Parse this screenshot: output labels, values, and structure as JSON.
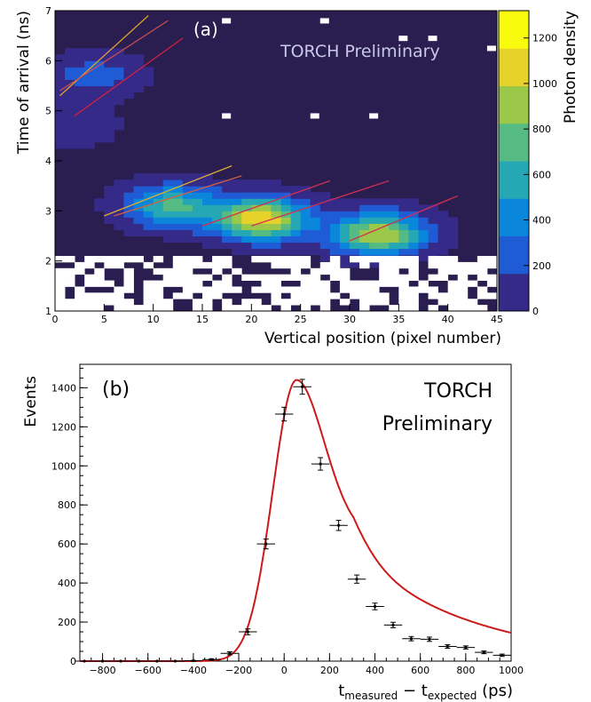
{
  "chart_data": [
    {
      "type": "heatmap",
      "panel_label": "(a)",
      "watermark": "TORCH Preliminary",
      "xlabel": "Vertical position (pixel number)",
      "ylabel": "Time of arrival (ns)",
      "colorbar_label": "Photon density",
      "xlim": [
        0,
        45
      ],
      "ylim": [
        1,
        7
      ],
      "xticks": [
        "0",
        "5",
        "10",
        "15",
        "20",
        "25",
        "30",
        "35",
        "40",
        "45"
      ],
      "yticks": [
        "1",
        "2",
        "3",
        "4",
        "5",
        "6",
        "7"
      ],
      "colorbar_ticks": [
        "0",
        "200",
        "400",
        "600",
        "800",
        "1000",
        "1200"
      ],
      "zlim": [
        0,
        1320
      ],
      "colormap": [
        "#352a87",
        "#1f5bd4",
        "#0a86da",
        "#26a8b4",
        "#55bb83",
        "#9cc84a",
        "#e6d22a",
        "#f9fb0e"
      ],
      "background_color": "#2a1d4f",
      "blobs": [
        {
          "x": 12,
          "y": 3.1,
          "peak": 700
        },
        {
          "x": 21,
          "y": 2.85,
          "peak": 1150
        },
        {
          "x": 33,
          "y": 2.55,
          "peak": 1000
        },
        {
          "x": 4,
          "y": 5.7,
          "peak": 250
        },
        {
          "x": 2,
          "y": 4.7,
          "peak": 120
        }
      ],
      "pattern_lines": [
        {
          "x": [
            0.5,
            9.5
          ],
          "y": [
            5.3,
            6.9
          ],
          "color": "#e0a030"
        },
        {
          "x": [
            0.5,
            11.5
          ],
          "y": [
            5.4,
            6.8
          ],
          "color": "#c85050"
        },
        {
          "x": [
            2,
            13
          ],
          "y": [
            4.9,
            6.45
          ],
          "color": "#d22040"
        },
        {
          "x": [
            5,
            18
          ],
          "y": [
            2.9,
            3.9
          ],
          "color": "#e0b030"
        },
        {
          "x": [
            6,
            19
          ],
          "y": [
            2.9,
            3.7
          ],
          "color": "#d06040"
        },
        {
          "x": [
            15,
            28
          ],
          "y": [
            2.7,
            3.6
          ],
          "color": "#d23050"
        },
        {
          "x": [
            20,
            34
          ],
          "y": [
            2.7,
            3.6
          ],
          "color": "#d23050"
        },
        {
          "x": [
            30,
            41
          ],
          "y": [
            2.4,
            3.3
          ],
          "color": "#d23050"
        }
      ]
    },
    {
      "type": "scatter",
      "panel_label": "(b)",
      "watermark": [
        "TORCH",
        "Preliminary"
      ],
      "ylabel": "Events",
      "xlabel": {
        "t1": "t",
        "sub1": "measured",
        "op": " − ",
        "t2": "t",
        "sub2": "expected",
        "unit": " (ps)"
      },
      "xlim": [
        -900,
        1000
      ],
      "ylim": [
        0,
        1520
      ],
      "xticks": [
        "−800",
        "−600",
        "−400",
        "−200",
        "0",
        "200",
        "400",
        "600",
        "800",
        "1000"
      ],
      "xtick_values": [
        -800,
        -600,
        -400,
        -200,
        0,
        200,
        400,
        600,
        800,
        1000
      ],
      "yticks": [
        "0",
        "200",
        "400",
        "600",
        "800",
        "1000",
        "1200",
        "1400"
      ],
      "ytick_values": [
        0,
        200,
        400,
        600,
        800,
        1000,
        1200,
        1400
      ],
      "bin_width": 80,
      "points": [
        {
          "x": -880,
          "y": 0
        },
        {
          "x": -800,
          "y": 0
        },
        {
          "x": -720,
          "y": 0
        },
        {
          "x": -640,
          "y": 0
        },
        {
          "x": -560,
          "y": 0
        },
        {
          "x": -480,
          "y": 0
        },
        {
          "x": -400,
          "y": 2
        },
        {
          "x": -320,
          "y": 8
        },
        {
          "x": -240,
          "y": 40
        },
        {
          "x": -160,
          "y": 150
        },
        {
          "x": -80,
          "y": 600
        },
        {
          "x": 0,
          "y": 1265
        },
        {
          "x": 80,
          "y": 1405
        },
        {
          "x": 160,
          "y": 1010
        },
        {
          "x": 240,
          "y": 695
        },
        {
          "x": 320,
          "y": 420
        },
        {
          "x": 400,
          "y": 280
        },
        {
          "x": 480,
          "y": 185
        },
        {
          "x": 560,
          "y": 115
        },
        {
          "x": 640,
          "y": 112
        },
        {
          "x": 720,
          "y": 75
        },
        {
          "x": 800,
          "y": 70
        },
        {
          "x": 880,
          "y": 45
        },
        {
          "x": 960,
          "y": 30
        }
      ],
      "errors": [
        0,
        0,
        0,
        0,
        0,
        0,
        2,
        4,
        8,
        15,
        25,
        35,
        38,
        32,
        26,
        21,
        17,
        14,
        11,
        11,
        9,
        8,
        7,
        6
      ],
      "fit_color": "#cc1a1a",
      "fit": {
        "amplitude": 1440,
        "peak": 55,
        "sigma_left": 105,
        "sigma_right": 170,
        "tail": 520
      }
    }
  ]
}
